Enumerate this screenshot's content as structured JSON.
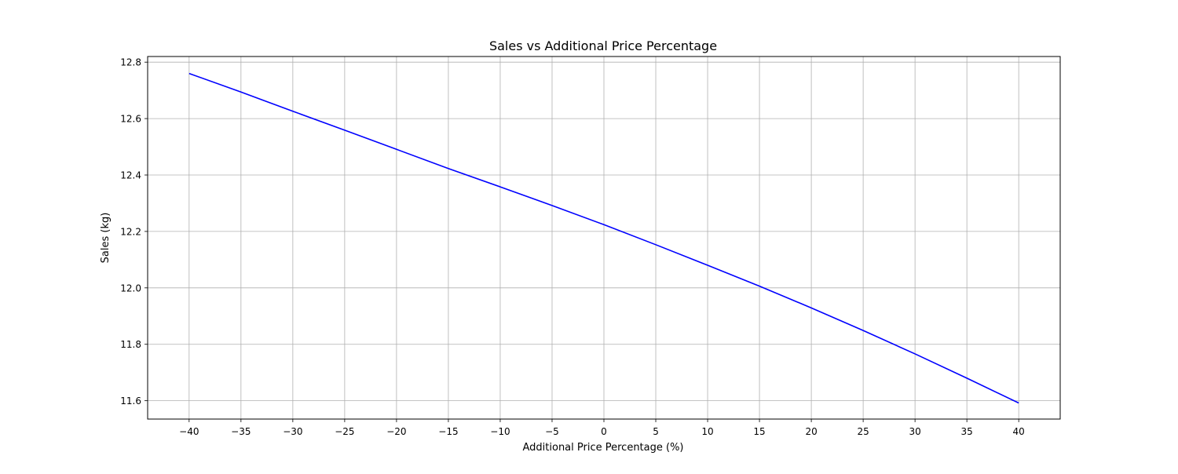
{
  "chart_data": {
    "type": "line",
    "title": "Sales vs Additional Price Percentage",
    "xlabel": "Additional Price Percentage (%)",
    "ylabel": "Sales (kg)",
    "xlim": [
      -44,
      44
    ],
    "ylim": [
      11.535,
      12.82
    ],
    "xticks": [
      -40,
      -35,
      -30,
      -25,
      -20,
      -15,
      -10,
      -5,
      0,
      5,
      10,
      15,
      20,
      25,
      30,
      35,
      40
    ],
    "xtick_labels": [
      "−40",
      "−35",
      "−30",
      "−25",
      "−20",
      "−15",
      "−10",
      "−5",
      "0",
      "5",
      "10",
      "15",
      "20",
      "25",
      "30",
      "35",
      "40"
    ],
    "yticks": [
      11.6,
      11.8,
      12.0,
      12.2,
      12.4,
      12.6,
      12.8
    ],
    "ytick_labels": [
      "11.6",
      "11.8",
      "12.0",
      "12.2",
      "12.4",
      "12.6",
      "12.8"
    ],
    "grid": true,
    "series": [
      {
        "color": "#0000ff",
        "x": [
          -40,
          -35,
          -30,
          -25,
          -20,
          -15,
          -10,
          -5,
          0,
          5,
          10,
          15,
          20,
          25,
          30,
          35,
          40
        ],
        "y": [
          12.76,
          12.694,
          12.626,
          12.559,
          12.491,
          12.423,
          12.358,
          12.292,
          12.224,
          12.153,
          12.08,
          12.006,
          11.929,
          11.849,
          11.766,
          11.68,
          11.592
        ]
      }
    ]
  }
}
